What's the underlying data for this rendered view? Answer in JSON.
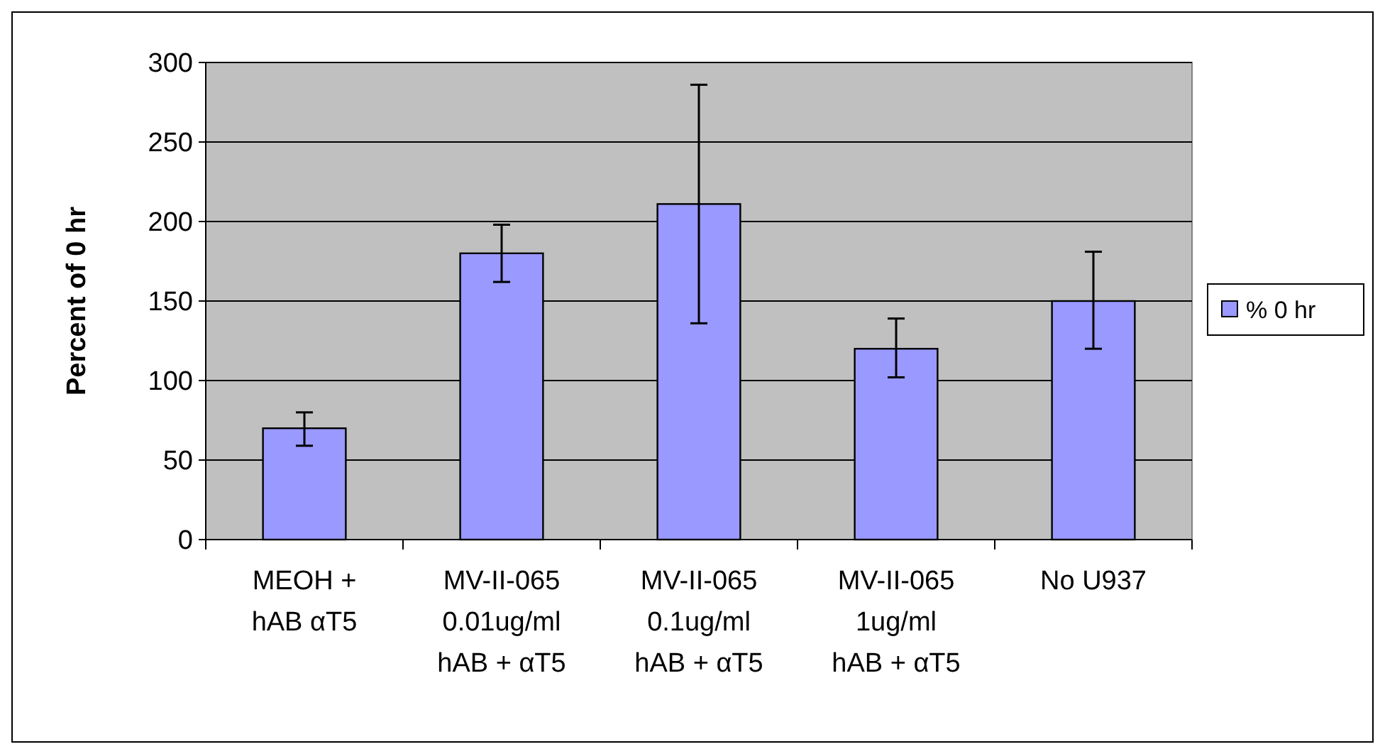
{
  "chart_data": {
    "type": "bar",
    "ylabel": "Percent of 0 hr",
    "categories": [
      "MEOH +\nhAB αT5",
      "MV-II-065\n0.01ug/ml\nhAB + αT5",
      "MV-II-065\n0.1ug/ml\nhAB + αT5",
      "MV-II-065\n1ug/ml\nhAB + αT5",
      "No U937"
    ],
    "series": [
      {
        "name": "% 0 hr",
        "color": "#9999ff",
        "values": [
          70,
          180,
          211,
          120,
          150
        ],
        "errors": [
          [
            59,
            80
          ],
          [
            162,
            198
          ],
          [
            136,
            286
          ],
          [
            102,
            139
          ],
          [
            120,
            181
          ]
        ]
      }
    ],
    "ylim": [
      0,
      300
    ],
    "yticks": [
      0,
      50,
      100,
      150,
      200,
      250,
      300
    ],
    "grid": "y",
    "legend": "right"
  }
}
